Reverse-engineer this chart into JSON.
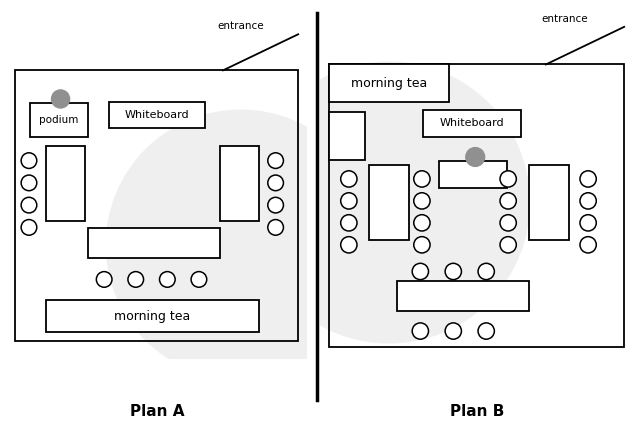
{
  "fig_width": 6.4,
  "fig_height": 4.26,
  "bg_color": "#ffffff",
  "watermark_color": "#cccccc",
  "chair_color": "#ffffff",
  "chair_edge": "#000000",
  "table_color": "#ffffff",
  "table_edge": "#000000",
  "podium_circle_color": "#909090",
  "plan_a_label": "Plan A",
  "plan_b_label": "Plan B",
  "entrance_label": "entrance",
  "morning_tea_label": "morning tea",
  "whiteboard_label": "Whiteboard",
  "podium_label": "podium"
}
